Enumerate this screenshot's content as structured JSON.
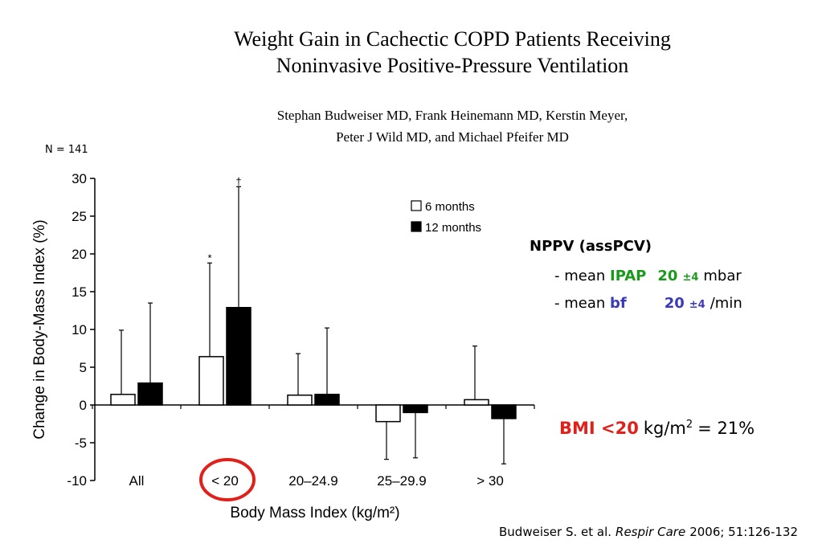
{
  "header": {
    "title_lines": [
      "Weight Gain in Cachectic COPD Patients Receiving",
      "Noninvasive Positive-Pressure Ventilation"
    ],
    "author_lines": [
      "Stephan Budweiser MD, Frank Heinemann MD, Kerstin Meyer,",
      "Peter J Wild MD, and Michael Pfeifer MD"
    ]
  },
  "sample_size": "N = 141",
  "chart_data": {
    "type": "bar",
    "categories": [
      "All",
      "< 20",
      "20–24.9",
      "25–29.9",
      "> 30"
    ],
    "series": [
      {
        "name": "6 months",
        "color": "#ffffff",
        "values": [
          1.4,
          6.4,
          1.3,
          -2.2,
          0.7
        ],
        "errors": [
          8.5,
          12.4,
          5.5,
          5.0,
          7.1
        ]
      },
      {
        "name": "12 months",
        "color": "#000000",
        "values": [
          2.9,
          12.9,
          1.4,
          -1.0,
          -1.8
        ],
        "errors": [
          10.6,
          16.0,
          8.8,
          6.0,
          6.0
        ]
      }
    ],
    "ylabel": "Change in Body-Mass Index (%)",
    "xlabel": "Body Mass Index (kg/m²)",
    "annotations": [
      "*",
      "†"
    ],
    "ylim": [
      -10,
      30
    ],
    "yticks": [
      -10,
      -5,
      0,
      5,
      10,
      15,
      20,
      25,
      30
    ],
    "legend": "upper right"
  },
  "nppv": {
    "heading": "NPPV (assPCV)",
    "lines": [
      {
        "prefix": "- mean ",
        "param": "IPAP",
        "value": "20",
        "sd": "±4",
        "unit": "mbar"
      },
      {
        "prefix": "- mean ",
        "param": "bf",
        "value": "20",
        "sd": "±4",
        "unit": "/min"
      }
    ]
  },
  "bmi_note": {
    "highlight": "BMI <20",
    "unit": "kg/m",
    "superscript": "2",
    "rest": "= 21%"
  },
  "citation": {
    "authors": "Budweiser S. et al.",
    "journal": "Respir Care",
    "details": "2006; 51:126-132"
  }
}
